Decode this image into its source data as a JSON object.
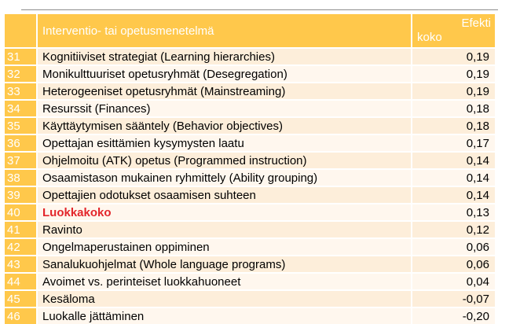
{
  "table": {
    "header": {
      "number": "",
      "method": "Interventio- tai opetusmenetelmä",
      "effect_line1": "Efekti",
      "effect_line2": "koko"
    },
    "rows": [
      {
        "rank": "31",
        "method": "Kognitiiviset strategiat (Learning hierarchies)",
        "effect": "0,19",
        "highlight": false
      },
      {
        "rank": "32",
        "method": "Monikulttuuriset opetusryhmät (Desegregation)",
        "effect": "0,19",
        "highlight": false
      },
      {
        "rank": "33",
        "method": "Heterogeeniset opetusryhmät (Mainstreaming)",
        "effect": "0,19",
        "highlight": false
      },
      {
        "rank": "34",
        "method": "Resurssit (Finances)",
        "effect": "0,18",
        "highlight": false
      },
      {
        "rank": "35",
        "method": "Käyttäytymisen sääntely (Behavior objectives)",
        "effect": "0,18",
        "highlight": false
      },
      {
        "rank": "36",
        "method": "Opettajan esittämien kysymysten laatu",
        "effect": "0,17",
        "highlight": false
      },
      {
        "rank": "37",
        "method": "Ohjelmoitu (ATK) opetus  (Programmed instruction)",
        "effect": "0,14",
        "highlight": false
      },
      {
        "rank": "38",
        "method": "Osaamistason mukainen ryhmittely (Ability grouping)",
        "effect": "0,14",
        "highlight": false
      },
      {
        "rank": "39",
        "method": "Opettajien odotukset osaamisen suhteen",
        "effect": "0,14",
        "highlight": false
      },
      {
        "rank": "40",
        "method": "Luokkakoko",
        "effect": "0,13",
        "highlight": true
      },
      {
        "rank": "41",
        "method": "Ravinto",
        "effect": "0,12",
        "highlight": false
      },
      {
        "rank": "42",
        "method": "Ongelmaperustainen oppiminen",
        "effect": "0,06",
        "highlight": false
      },
      {
        "rank": "43",
        "method": "Sanalukuohjelmat (Whole language programs)",
        "effect": "0,06",
        "highlight": false
      },
      {
        "rank": "44",
        "method": "Avoimet vs. perinteiset luokkahuoneet",
        "effect": "0,04",
        "highlight": false
      },
      {
        "rank": "45",
        "method": "Kesäloma",
        "effect": "-0,07",
        "highlight": false
      },
      {
        "rank": "46",
        "method": "Luokalle jättäminen",
        "effect": "-0,20",
        "highlight": false
      }
    ]
  },
  "colors": {
    "header_bg": "#ffc84b",
    "row_dark": "#fdeeda",
    "row_light": "#fff7ee",
    "highlight_text": "#e3262b"
  }
}
